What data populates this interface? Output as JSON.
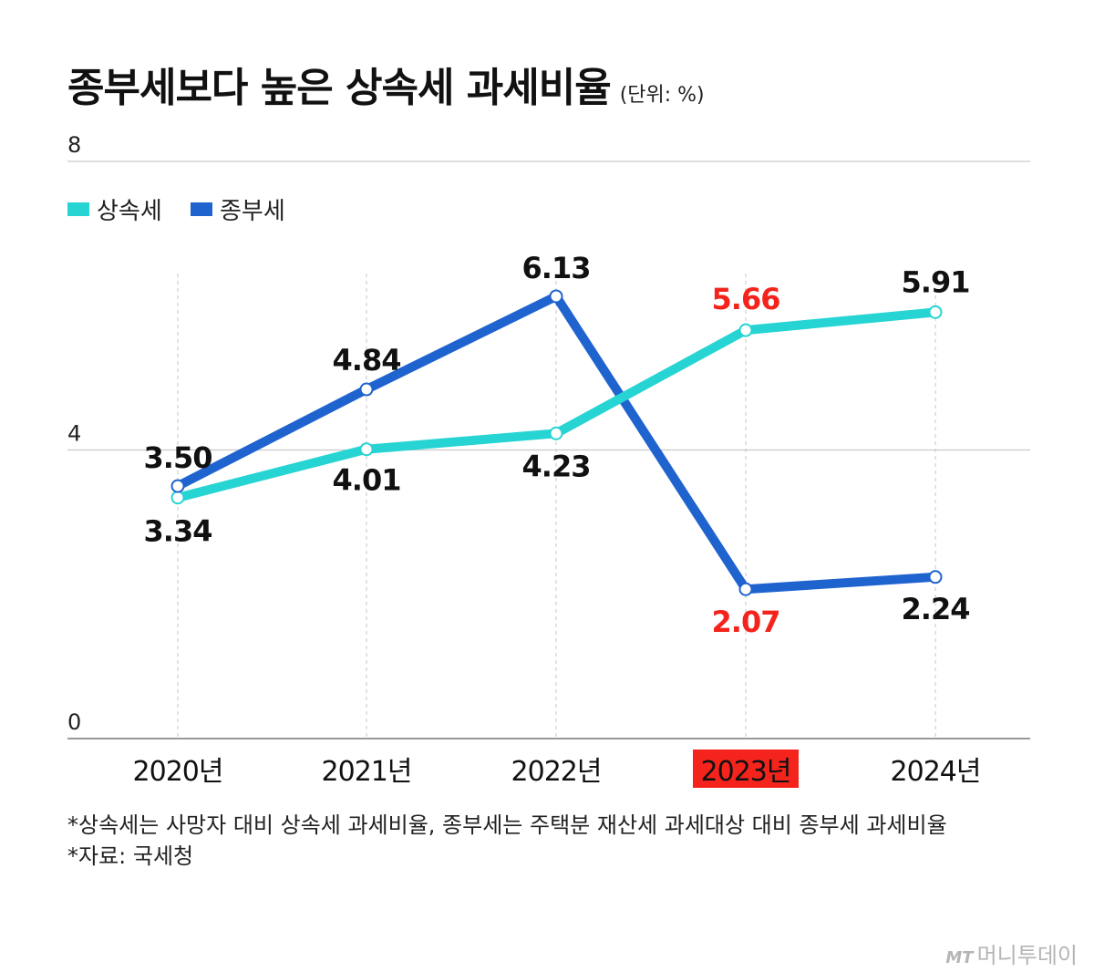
{
  "title": "종부세보다 높은 상속세 과세비율",
  "unit": "(단위: %)",
  "notes": [
    "*상속세는 사망자 대비 상속세 과세비율, 종부세는 주택분 재산세 과세대상 대비 종부세 과세비율",
    "*자료: 국세청"
  ],
  "logo": {
    "mark": "MT",
    "text": "머니투데이"
  },
  "colors": {
    "series1": "#27d4d4",
    "series2": "#1f63cf",
    "highlight": "#f4241c",
    "label": "#111111"
  },
  "chart_data": {
    "type": "line",
    "categories": [
      "2020년",
      "2021년",
      "2022년",
      "2023년",
      "2024년"
    ],
    "highlight_category": "2023년",
    "ylim": [
      0,
      8
    ],
    "yticks": [
      0,
      4,
      8
    ],
    "grid": true,
    "legend_position": "top-left",
    "series": [
      {
        "name": "상속세",
        "color": "#27d4d4",
        "values": [
          3.34,
          4.01,
          4.23,
          5.66,
          5.91
        ],
        "labels": [
          "3.34",
          "4.01",
          "4.23",
          "5.66",
          "5.91"
        ],
        "highlight_labels": [
          false,
          false,
          false,
          true,
          false
        ]
      },
      {
        "name": "종부세",
        "color": "#1f63cf",
        "values": [
          3.5,
          4.84,
          6.13,
          2.07,
          2.24
        ],
        "labels": [
          "3.50",
          "4.84",
          "6.13",
          "2.07",
          "2.24"
        ],
        "highlight_labels": [
          false,
          false,
          false,
          true,
          false
        ]
      }
    ]
  }
}
